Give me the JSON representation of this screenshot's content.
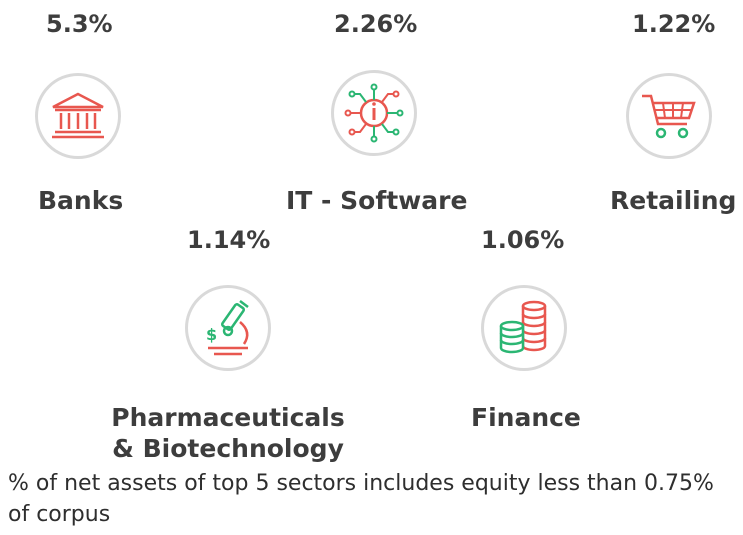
{
  "sectors": [
    {
      "pct": "5.3%",
      "label": "Banks",
      "icon": "bank-icon"
    },
    {
      "pct": "2.26%",
      "label": "IT - Software",
      "icon": "circuit-chip-icon"
    },
    {
      "pct": "1.22%",
      "label": "Retailing",
      "icon": "shopping-cart-icon"
    },
    {
      "pct": "1.14%",
      "label_line1": "Pharmaceuticals",
      "label_line2": "& Biotechnology",
      "icon": "microscope-icon"
    },
    {
      "pct": "1.06%",
      "label": "Finance",
      "icon": "coin-stack-icon"
    }
  ],
  "footnote": "% of net assets of top 5 sectors includes equity less than 0.75% of corpus",
  "colors": {
    "red": "#e8574f",
    "green": "#2bb673",
    "circle_border": "#d9d9d9",
    "text": "#3d3d3d"
  }
}
